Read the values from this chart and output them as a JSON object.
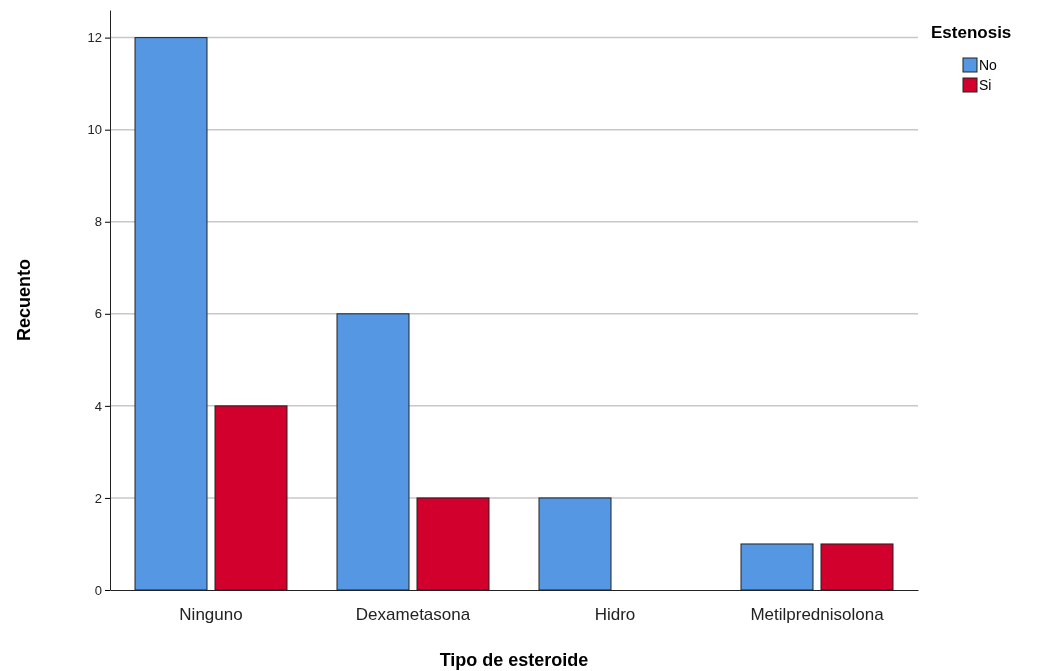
{
  "chart_data": {
    "type": "bar",
    "xlabel": "Tipo de esteroide",
    "ylabel": "Recuento",
    "legend_title": "Estenosis",
    "categories": [
      "Ninguno",
      "Dexametasona",
      "Hidro",
      "Metilprednisolona"
    ],
    "series": [
      {
        "name": "No",
        "color": "#5597e3",
        "values": [
          12,
          6,
          2,
          1
        ]
      },
      {
        "name": "Si",
        "color": "#d1002d",
        "values": [
          4,
          2,
          0,
          1
        ]
      }
    ],
    "ylim": [
      0,
      12.6
    ],
    "yticks": [
      0,
      2,
      4,
      6,
      8,
      10,
      12
    ],
    "grid": "y",
    "legend": "top right"
  }
}
